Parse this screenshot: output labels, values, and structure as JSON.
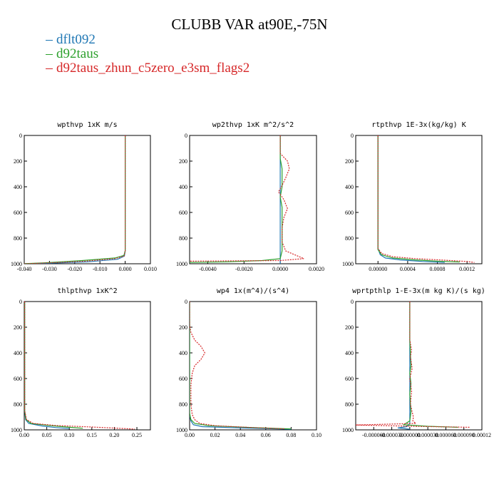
{
  "title": "CLUBB VAR at90E,-75N",
  "legend": [
    {
      "name": "dflt092",
      "color": "#1f77b4"
    },
    {
      "name": "d92taus",
      "color": "#2ca02c"
    },
    {
      "name": "d92taus_zhun_c5zero_e3sm_flags2",
      "color": "#d62728"
    }
  ],
  "chart_data": [
    {
      "type": "line",
      "title": "wpthvp  1xK m/s",
      "xlim": [
        -0.04,
        0.01
      ],
      "ylim": [
        1000,
        0
      ],
      "xticks": [
        -0.04,
        -0.03,
        -0.02,
        -0.01,
        0.0,
        0.01
      ],
      "xtick_labels": [
        "-0.040",
        "-0.030",
        "-0.020",
        "-0.010",
        "0.000",
        "0.010"
      ],
      "yticks": [
        0,
        200,
        400,
        600,
        800,
        1000
      ],
      "ytick_labels": [
        "0",
        "200",
        "400",
        "600",
        "800",
        "1000"
      ],
      "series": [
        {
          "name": "dflt092",
          "color": "#1f77b4",
          "dash": false,
          "points": [
            [
              0.0,
              0
            ],
            [
              0.0,
              900
            ],
            [
              -0.0003,
              940
            ],
            [
              -0.003,
              965
            ],
            [
              -0.015,
              985
            ],
            [
              -0.03,
              996
            ],
            [
              -0.04,
              1000
            ]
          ]
        },
        {
          "name": "d92taus",
          "color": "#2ca02c",
          "dash": false,
          "points": [
            [
              0.0,
              0
            ],
            [
              0.0,
              900
            ],
            [
              -0.0005,
              935
            ],
            [
              -0.004,
              955
            ],
            [
              -0.017,
              975
            ],
            [
              -0.032,
              993
            ],
            [
              -0.04,
              999
            ]
          ]
        },
        {
          "name": "d92taus_zhun_c5zero_e3sm_flags2",
          "color": "#d62728",
          "dash": true,
          "points": [
            [
              0.0,
              0
            ],
            [
              0.0,
              900
            ],
            [
              -0.0004,
              940
            ],
            [
              -0.004,
              960
            ],
            [
              -0.016,
              980
            ],
            [
              -0.031,
              994
            ],
            [
              -0.04,
              1000
            ]
          ]
        }
      ]
    },
    {
      "type": "line",
      "title": "wp2thvp  1xK m^2/s^2",
      "xlim": [
        -0.005,
        0.002
      ],
      "ylim": [
        1000,
        0
      ],
      "xticks": [
        -0.004,
        -0.002,
        0.0,
        0.002
      ],
      "xtick_labels": [
        "-0.0040",
        "-0.0020",
        "0.0000",
        "0.0020"
      ],
      "yticks": [
        0,
        200,
        400,
        600,
        800,
        1000
      ],
      "ytick_labels": [
        "0",
        "200",
        "400",
        "600",
        "800",
        "1000"
      ],
      "series": [
        {
          "name": "dflt092",
          "color": "#1f77b4",
          "dash": false,
          "points": [
            [
              0.0,
              0
            ],
            [
              0.0,
              960
            ],
            [
              0.0,
              1000
            ]
          ]
        },
        {
          "name": "d92taus",
          "color": "#2ca02c",
          "dash": false,
          "points": [
            [
              0.0,
              0
            ],
            [
              0.0,
              180
            ],
            [
              0.0001,
              260
            ],
            [
              0.0001,
              400
            ],
            [
              0.0,
              480
            ],
            [
              0.0001,
              560
            ],
            [
              0.0001,
              700
            ],
            [
              0.0001,
              900
            ],
            [
              0.0,
              960
            ],
            [
              -0.001,
              975
            ],
            [
              -0.003,
              985
            ],
            [
              -0.005,
              990
            ]
          ]
        },
        {
          "name": "d92taus_zhun_c5zero_e3sm_flags2",
          "color": "#d62728",
          "dash": true,
          "points": [
            [
              0.0,
              0
            ],
            [
              0.0,
              140
            ],
            [
              0.0004,
              200
            ],
            [
              0.0005,
              260
            ],
            [
              0.0003,
              330
            ],
            [
              0.0001,
              390
            ],
            [
              -0.0001,
              440
            ],
            [
              0.0002,
              500
            ],
            [
              0.0004,
              570
            ],
            [
              0.0002,
              640
            ],
            [
              0.0001,
              720
            ],
            [
              0.0001,
              830
            ],
            [
              0.0003,
              900
            ],
            [
              0.0008,
              930
            ],
            [
              0.0013,
              960
            ],
            [
              0.0,
              975
            ],
            [
              -0.003,
              978
            ],
            [
              -0.005,
              980
            ]
          ]
        }
      ]
    },
    {
      "type": "line",
      "title": "rtpthvp  1E-3x(kg/kg) K",
      "xlim": [
        -0.0003,
        0.0014
      ],
      "ylim": [
        1000,
        0
      ],
      "xticks": [
        0.0,
        0.0004,
        0.0008,
        0.0012
      ],
      "xtick_labels": [
        "0.00000",
        "0.0004",
        "0.0008",
        "0.0012"
      ],
      "yticks": [
        0,
        200,
        400,
        600,
        800,
        1000
      ],
      "ytick_labels": [
        "0",
        "200",
        "400",
        "600",
        "800",
        "1000"
      ],
      "series": [
        {
          "name": "dflt092",
          "color": "#1f77b4",
          "dash": false,
          "points": [
            [
              0.0,
              0
            ],
            [
              0.0,
              880
            ],
            [
              3e-05,
              930
            ],
            [
              0.0001,
              955
            ],
            [
              0.0003,
              970
            ],
            [
              0.0006,
              982
            ],
            [
              0.0009,
              990
            ]
          ]
        },
        {
          "name": "d92taus",
          "color": "#2ca02c",
          "dash": false,
          "points": [
            [
              0.0,
              0
            ],
            [
              0.0,
              890
            ],
            [
              5e-05,
              930
            ],
            [
              0.0002,
              955
            ],
            [
              0.0005,
              970
            ],
            [
              0.0008,
              980
            ],
            [
              0.0011,
              986
            ]
          ]
        },
        {
          "name": "d92taus_zhun_c5zero_e3sm_flags2",
          "color": "#d62728",
          "dash": true,
          "points": [
            [
              0.0,
              0
            ],
            [
              0.0,
              880
            ],
            [
              5e-05,
              920
            ],
            [
              0.0002,
              945
            ],
            [
              0.0005,
              960
            ],
            [
              0.0009,
              972
            ],
            [
              0.0012,
              982
            ],
            [
              0.0013,
              990
            ]
          ]
        }
      ]
    },
    {
      "type": "line",
      "title": "thlpthvp  1xK^2",
      "xlim": [
        0.0,
        0.28
      ],
      "ylim": [
        1000,
        0
      ],
      "xticks": [
        0.0,
        0.05,
        0.1,
        0.15,
        0.2,
        0.25
      ],
      "xtick_labels": [
        "0.00",
        "0.05",
        "0.10",
        "0.15",
        "0.20",
        "0.25"
      ],
      "yticks": [
        0,
        200,
        400,
        600,
        800,
        1000
      ],
      "ytick_labels": [
        "0",
        "200",
        "400",
        "600",
        "800",
        "1000"
      ],
      "series": [
        {
          "name": "dflt092",
          "color": "#1f77b4",
          "dash": false,
          "points": [
            [
              0.001,
              0
            ],
            [
              0.001,
              850
            ],
            [
              0.003,
              920
            ],
            [
              0.01,
              950
            ],
            [
              0.04,
              970
            ],
            [
              0.07,
              982
            ],
            [
              0.1,
              990
            ]
          ]
        },
        {
          "name": "d92taus",
          "color": "#2ca02c",
          "dash": false,
          "points": [
            [
              0.001,
              0
            ],
            [
              0.001,
              850
            ],
            [
              0.004,
              920
            ],
            [
              0.015,
              950
            ],
            [
              0.06,
              968
            ],
            [
              0.1,
              980
            ],
            [
              0.13,
              988
            ]
          ]
        },
        {
          "name": "d92taus_zhun_c5zero_e3sm_flags2",
          "color": "#d62728",
          "dash": true,
          "points": [
            [
              0.001,
              0
            ],
            [
              0.001,
              850
            ],
            [
              0.005,
              920
            ],
            [
              0.02,
              950
            ],
            [
              0.07,
              966
            ],
            [
              0.15,
              978
            ],
            [
              0.2,
              986
            ],
            [
              0.245,
              994
            ]
          ]
        }
      ]
    },
    {
      "type": "line",
      "title": "wp4  1x(m^4)/(s^4)",
      "xlim": [
        0.0,
        0.1
      ],
      "ylim": [
        1000,
        0
      ],
      "xticks": [
        0.0,
        0.02,
        0.04,
        0.06,
        0.08,
        0.1
      ],
      "xtick_labels": [
        "0.00",
        "0.02",
        "0.04",
        "0.06",
        "0.08",
        "0.10"
      ],
      "yticks": [
        0,
        200,
        400,
        600,
        800,
        1000
      ],
      "ytick_labels": [
        "0",
        "200",
        "400",
        "600",
        "800",
        "1000"
      ],
      "series": [
        {
          "name": "dflt092",
          "color": "#1f77b4",
          "dash": false,
          "points": [
            [
              0.0,
              0
            ],
            [
              0.0,
              880
            ],
            [
              0.001,
              930
            ],
            [
              0.003,
              960
            ],
            [
              0.01,
              975
            ],
            [
              0.04,
              985
            ],
            [
              0.07,
              992
            ],
            [
              0.08,
              996
            ]
          ]
        },
        {
          "name": "d92taus",
          "color": "#2ca02c",
          "dash": false,
          "points": [
            [
              0.0,
              0
            ],
            [
              0.0,
              870
            ],
            [
              0.001,
              920
            ],
            [
              0.004,
              950
            ],
            [
              0.015,
              968
            ],
            [
              0.05,
              982
            ],
            [
              0.08,
              993
            ]
          ]
        },
        {
          "name": "d92taus_zhun_c5zero_e3sm_flags2",
          "color": "#d62728",
          "dash": true,
          "points": [
            [
              0.0,
              0
            ],
            [
              0.0,
              180
            ],
            [
              0.001,
              240
            ],
            [
              0.004,
              300
            ],
            [
              0.009,
              350
            ],
            [
              0.012,
              400
            ],
            [
              0.009,
              450
            ],
            [
              0.004,
              500
            ],
            [
              0.002,
              560
            ],
            [
              0.001,
              650
            ],
            [
              0.001,
              800
            ],
            [
              0.002,
              880
            ],
            [
              0.004,
              920
            ],
            [
              0.008,
              950
            ],
            [
              0.02,
              968
            ],
            [
              0.05,
              982
            ],
            [
              0.075,
              992
            ]
          ]
        }
      ]
    },
    {
      "type": "line",
      "title": "wprtpthlp  1-E-3x(m kg K)/(s kg)",
      "xlim": [
        -9e-05,
        0.00012
      ],
      "ylim": [
        1000,
        0
      ],
      "xticks": [
        -6e-05,
        -3e-05,
        0.0,
        3e-05,
        6e-05,
        9e-05,
        0.00012
      ],
      "xtick_labels": [
        "-0.000060",
        "-0.000030",
        "0.000000",
        "0.000030",
        "0.000060",
        "0.000090",
        "0.00012"
      ],
      "yticks": [
        0,
        200,
        400,
        600,
        800,
        1000
      ],
      "ytick_labels": [
        "0",
        "200",
        "400",
        "600",
        "800",
        "1000"
      ],
      "series": [
        {
          "name": "dflt092",
          "color": "#1f77b4",
          "dash": false,
          "points": [
            [
              0.0,
              0
            ],
            [
              0.0,
              950
            ],
            [
              -5e-06,
              975
            ],
            [
              -2e-05,
              985
            ],
            [
              0.0,
              995
            ]
          ]
        },
        {
          "name": "d92taus",
          "color": "#2ca02c",
          "dash": false,
          "points": [
            [
              0.0,
              0
            ],
            [
              0.0,
              300
            ],
            [
              2e-06,
              500
            ],
            [
              0.0,
              560
            ],
            [
              2e-06,
              640
            ],
            [
              0.0,
              720
            ],
            [
              2e-06,
              860
            ],
            [
              0.0,
              930
            ],
            [
              -1e-05,
              960
            ],
            [
              3e-05,
              972
            ],
            [
              8e-05,
              980
            ]
          ]
        },
        {
          "name": "d92taus_zhun_c5zero_e3sm_flags2",
          "color": "#d62728",
          "dash": true,
          "points": [
            [
              0.0,
              0
            ],
            [
              0.0,
              300
            ],
            [
              3e-06,
              380
            ],
            [
              1e-06,
              430
            ],
            [
              4e-06,
              520
            ],
            [
              0.0,
              600
            ],
            [
              3e-06,
              700
            ],
            [
              1e-06,
              800
            ],
            [
              4e-06,
              860
            ],
            [
              6e-06,
              900
            ],
            [
              5e-06,
              930
            ],
            [
              1e-05,
              950
            ],
            [
              -9e-05,
              962
            ],
            [
              5e-06,
              972
            ],
            [
              0.0001,
              980
            ]
          ]
        }
      ]
    }
  ]
}
